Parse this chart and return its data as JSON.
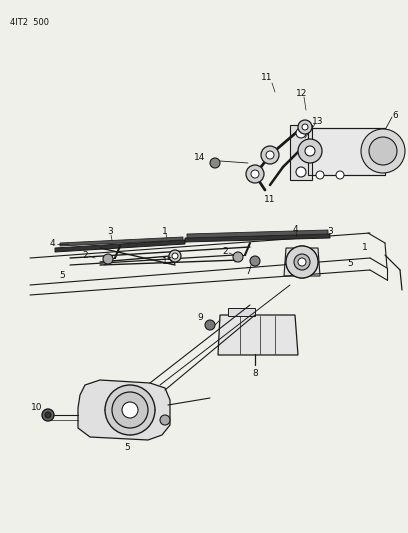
{
  "header_text": "4IT2  500",
  "background_color": "#f0f0eb",
  "line_color": "#1a1a1a",
  "text_color": "#111111",
  "fig_width": 4.08,
  "fig_height": 5.33,
  "dpi": 100,
  "label_size": 6.5
}
